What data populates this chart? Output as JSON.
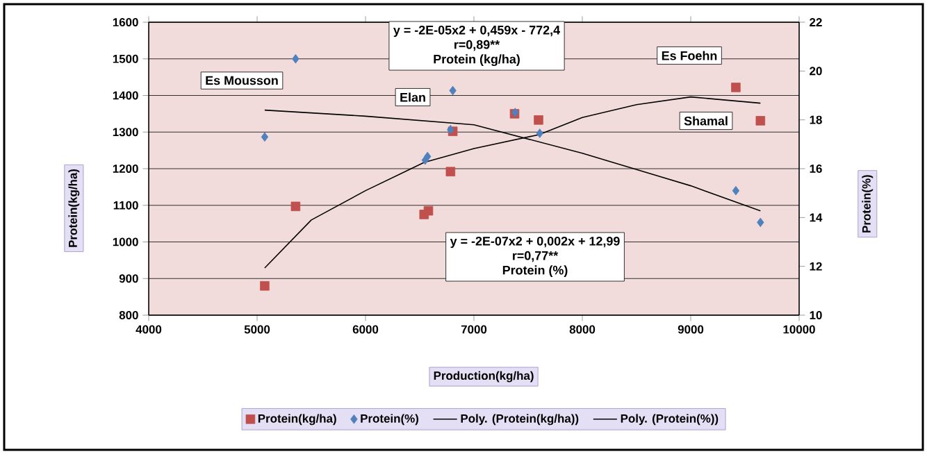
{
  "chart_data": {
    "type": "scatter",
    "xlabel": "Production(kg/ha)",
    "ylabel": "Protein(kg/ha)",
    "y2label": "Protein(%)",
    "xlim": [
      4000,
      10000
    ],
    "xticks": [
      4000,
      5000,
      6000,
      7000,
      8000,
      9000,
      10000
    ],
    "ylim": [
      800,
      1600
    ],
    "yticks": [
      800,
      900,
      1000,
      1100,
      1200,
      1300,
      1400,
      1500,
      1600
    ],
    "y2lim": [
      10,
      22
    ],
    "y2ticks": [
      10,
      12,
      14,
      16,
      18,
      20,
      22
    ],
    "grid": "y",
    "legend": "bottom",
    "series": [
      {
        "name": "Protein(kg/ha)",
        "marker": "square",
        "color": "#c0504d",
        "x": [
          5070,
          5355,
          6540,
          6580,
          6784,
          6805,
          7375,
          7596,
          9416,
          9643
        ],
        "values": [
          880,
          1097,
          1075,
          1085,
          1192,
          1302,
          1350,
          1333,
          1422,
          1331
        ]
      },
      {
        "name": "Protein(%)",
        "marker": "diamond",
        "axis": "y2",
        "color": "#4f81bd",
        "x": [
          5070,
          5355,
          6550,
          6572,
          6784,
          6805,
          7380,
          7607,
          9416,
          9643
        ],
        "values": [
          17.3,
          20.5,
          16.35,
          16.5,
          17.6,
          19.2,
          18.3,
          17.45,
          15.1,
          13.8
        ]
      },
      {
        "name": "Poly. (Protein(kg/ha))",
        "type": "line",
        "marker": "none",
        "line_style": "solid",
        "color": "#000000",
        "x": [
          5070,
          5500,
          6000,
          6540,
          7000,
          7600,
          8000,
          8500,
          9000,
          9643
        ],
        "values": [
          929,
          1060,
          1140,
          1217,
          1255,
          1293,
          1340,
          1375,
          1396,
          1379
        ]
      },
      {
        "name": "Poly. (Protein(%))",
        "type": "line",
        "marker": "none",
        "line_style": "solid",
        "axis": "y2",
        "color": "#000000",
        "x": [
          5070,
          6000,
          7000,
          8000,
          9000,
          9643
        ],
        "values": [
          18.4,
          18.15,
          17.8,
          16.63,
          15.3,
          14.27
        ]
      }
    ],
    "annotations": [
      "y = -2E-05x2 + 0,459x - 772,4",
      "r=0,89**",
      "Protein (kg/ha)",
      "y = -2E-07x2 + 0,002x + 12,99",
      "r=0,77**",
      "Protein (%)",
      "Es Mousson",
      "Elan",
      "Es Foehn",
      "Shamal"
    ]
  }
}
